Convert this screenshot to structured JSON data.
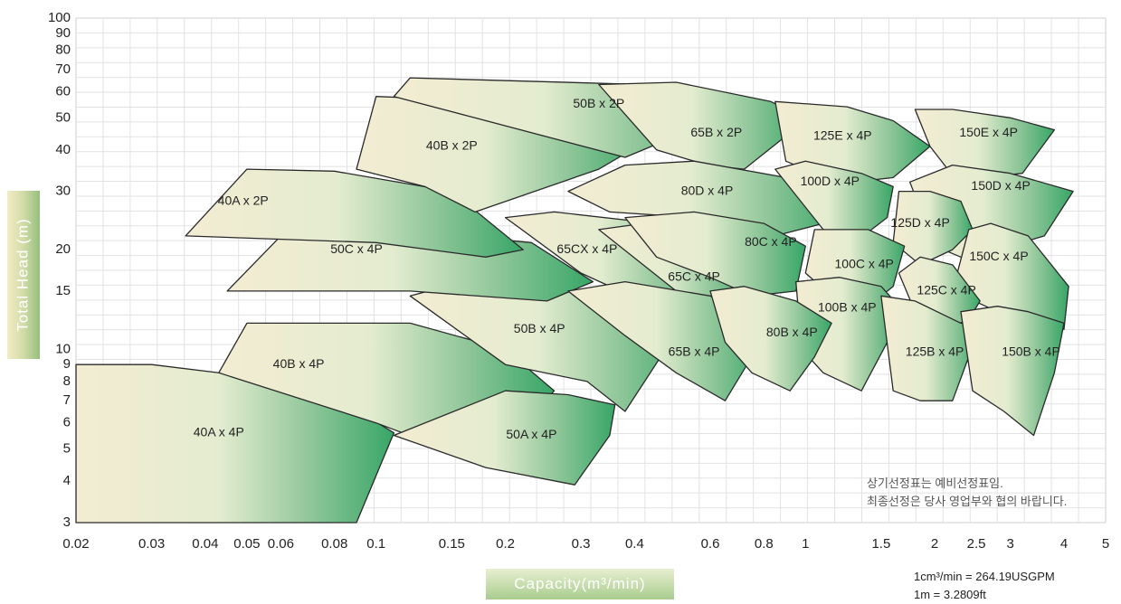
{
  "chart_data": {
    "type": "area",
    "xscale": "log",
    "yscale": "log",
    "xlim": [
      0.02,
      5
    ],
    "ylim": [
      3,
      100
    ],
    "grid": true,
    "xlabel": "Capacity(m³/min)",
    "ylabel": "Total Head (m)",
    "xticks": [
      "0.02",
      "0.03",
      "0.04",
      "0.05",
      "0.06",
      "0.08",
      "0.1",
      "0.15",
      "0.2",
      "0.3",
      "0.4",
      "0.6",
      "0.8",
      "1",
      "1.5",
      "2",
      "2.5",
      "3",
      "4",
      "5"
    ],
    "yticks": [
      "3",
      "4",
      "5",
      "6",
      "7",
      "8",
      "9",
      "10",
      "15",
      "20",
      "30",
      "40",
      "50",
      "60",
      "70",
      "80",
      "90",
      "100"
    ],
    "series": [
      {
        "name": "40A x 4P",
        "label": [
          0.043,
          5.6
        ],
        "polygon": [
          [
            0.02,
            3
          ],
          [
            0.02,
            9
          ],
          [
            0.03,
            9
          ],
          [
            0.05,
            8.3
          ],
          [
            0.08,
            7.2
          ],
          [
            0.11,
            5.6
          ],
          [
            0.09,
            3
          ]
        ]
      },
      {
        "name": "40B x 4P",
        "label": [
          0.066,
          9
        ],
        "polygon": [
          [
            0.043,
            8.5
          ],
          [
            0.05,
            12
          ],
          [
            0.12,
            12
          ],
          [
            0.2,
            10
          ],
          [
            0.26,
            7.5
          ],
          [
            0.18,
            4.5
          ],
          [
            0.1,
            6
          ]
        ]
      },
      {
        "name": "50A x 4P",
        "label": [
          0.23,
          5.5
        ],
        "polygon": [
          [
            0.11,
            5.5
          ],
          [
            0.2,
            7.5
          ],
          [
            0.28,
            7.3
          ],
          [
            0.36,
            6.8
          ],
          [
            0.35,
            5.5
          ],
          [
            0.29,
            3.9
          ],
          [
            0.18,
            4.4
          ]
        ]
      },
      {
        "name": "50B x 4P",
        "label": [
          0.24,
          11.5
        ],
        "polygon": [
          [
            0.12,
            14.5
          ],
          [
            0.16,
            16
          ],
          [
            0.32,
            15
          ],
          [
            0.55,
            13
          ],
          [
            0.46,
            9.5
          ],
          [
            0.38,
            6.5
          ],
          [
            0.31,
            8
          ],
          [
            0.2,
            9
          ]
        ]
      },
      {
        "name": "50C x 4P",
        "label": [
          0.09,
          20
        ],
        "polygon": [
          [
            0.045,
            15
          ],
          [
            0.06,
            22
          ],
          [
            0.11,
            23
          ],
          [
            0.23,
            21
          ],
          [
            0.32,
            16
          ],
          [
            0.25,
            14
          ],
          [
            0.12,
            15
          ]
        ]
      },
      {
        "name": "40A x 2P",
        "label": [
          0.049,
          28
        ],
        "polygon": [
          [
            0.036,
            22
          ],
          [
            0.05,
            35
          ],
          [
            0.08,
            34.5
          ],
          [
            0.15,
            30
          ],
          [
            0.22,
            20
          ],
          [
            0.18,
            19
          ],
          [
            0.1,
            21
          ]
        ]
      },
      {
        "name": "40B x 2P",
        "label": [
          0.15,
          41
        ],
        "polygon": [
          [
            0.09,
            35
          ],
          [
            0.1,
            58
          ],
          [
            0.2,
            56
          ],
          [
            0.33,
            50
          ],
          [
            0.42,
            42
          ],
          [
            0.33,
            35
          ],
          [
            0.17,
            26
          ],
          [
            0.13,
            31
          ]
        ]
      },
      {
        "name": "50B x 2P",
        "label": [
          0.33,
          55
        ],
        "polygon": [
          [
            0.11,
            58
          ],
          [
            0.12,
            66
          ],
          [
            0.42,
            63
          ],
          [
            0.58,
            57
          ],
          [
            0.65,
            48
          ],
          [
            0.52,
            45
          ],
          [
            0.38,
            38
          ]
        ]
      },
      {
        "name": "65B x 2P",
        "label": [
          0.62,
          45
        ],
        "polygon": [
          [
            0.33,
            63
          ],
          [
            0.5,
            64
          ],
          [
            0.83,
            56
          ],
          [
            1.0,
            50
          ],
          [
            0.88,
            43
          ],
          [
            0.72,
            35
          ],
          [
            0.59,
            36
          ],
          [
            0.45,
            40
          ]
        ]
      },
      {
        "name": "125E x 4P",
        "label": [
          1.22,
          44
        ],
        "polygon": [
          [
            0.85,
            56
          ],
          [
            1.25,
            54
          ],
          [
            1.6,
            49
          ],
          [
            1.95,
            41
          ],
          [
            1.6,
            33
          ],
          [
            1.3,
            32
          ],
          [
            1.05,
            34
          ],
          [
            0.9,
            37
          ]
        ]
      },
      {
        "name": "150E x 4P",
        "label": [
          2.67,
          45
        ],
        "polygon": [
          [
            1.8,
            53
          ],
          [
            2.2,
            53
          ],
          [
            3.0,
            50
          ],
          [
            3.8,
            46
          ],
          [
            3.2,
            34
          ],
          [
            2.6,
            33
          ],
          [
            2.2,
            33.5
          ],
          [
            1.95,
            41
          ]
        ]
      },
      {
        "name": "80D x 4P",
        "label": [
          0.59,
          30
        ],
        "polygon": [
          [
            0.28,
            30
          ],
          [
            0.38,
            36
          ],
          [
            0.55,
            37
          ],
          [
            0.9,
            33
          ],
          [
            1.2,
            28
          ],
          [
            1.1,
            24
          ],
          [
            0.85,
            22
          ],
          [
            0.55,
            25
          ],
          [
            0.35,
            26
          ]
        ]
      },
      {
        "name": "100D x 4P",
        "label": [
          1.14,
          32
        ],
        "polygon": [
          [
            0.85,
            35
          ],
          [
            1.0,
            37
          ],
          [
            1.35,
            34
          ],
          [
            1.6,
            31
          ],
          [
            1.55,
            25
          ],
          [
            1.3,
            21
          ],
          [
            1.1,
            23
          ]
        ]
      },
      {
        "name": "150D x 4P",
        "label": [
          2.85,
          31
        ],
        "polygon": [
          [
            1.75,
            32
          ],
          [
            2.2,
            36
          ],
          [
            3.0,
            34
          ],
          [
            4.2,
            30
          ],
          [
            3.6,
            22
          ],
          [
            2.8,
            20
          ],
          [
            2.3,
            19
          ],
          [
            2.0,
            20.5
          ]
        ]
      },
      {
        "name": "125D x 4P",
        "label": [
          1.85,
          24
        ],
        "polygon": [
          [
            1.65,
            30
          ],
          [
            1.95,
            30
          ],
          [
            2.3,
            28
          ],
          [
            2.45,
            23
          ],
          [
            2.2,
            20
          ],
          [
            1.85,
            18
          ],
          [
            1.6,
            21
          ]
        ]
      },
      {
        "name": "65CX x 4P",
        "label": [
          0.31,
          20
        ],
        "polygon": [
          [
            0.2,
            25
          ],
          [
            0.26,
            26
          ],
          [
            0.45,
            24
          ],
          [
            0.62,
            21
          ],
          [
            0.58,
            15
          ],
          [
            0.45,
            14
          ],
          [
            0.37,
            15
          ],
          [
            0.3,
            17
          ]
        ]
      },
      {
        "name": "65C x 4P",
        "label": [
          0.55,
          16.5
        ],
        "polygon": [
          [
            0.33,
            23
          ],
          [
            0.42,
            24
          ],
          [
            0.6,
            22
          ],
          [
            0.75,
            19
          ],
          [
            0.7,
            14
          ],
          [
            0.6,
            13.5
          ],
          [
            0.5,
            15
          ]
        ]
      },
      {
        "name": "80C x 4P",
        "label": [
          0.83,
          21
        ],
        "polygon": [
          [
            0.38,
            25
          ],
          [
            0.55,
            26
          ],
          [
            0.8,
            24
          ],
          [
            1.0,
            20.5
          ],
          [
            0.95,
            15
          ],
          [
            0.75,
            14.5
          ],
          [
            0.6,
            16.5
          ],
          [
            0.45,
            19
          ]
        ]
      },
      {
        "name": "100C x 4P",
        "label": [
          1.37,
          18
        ],
        "polygon": [
          [
            1.05,
            23
          ],
          [
            1.4,
            23
          ],
          [
            1.7,
            20.5
          ],
          [
            1.6,
            15.5
          ],
          [
            1.35,
            13
          ],
          [
            1.15,
            14.5
          ],
          [
            1.0,
            17
          ]
        ]
      },
      {
        "name": "150C x 4P",
        "label": [
          2.82,
          19
        ],
        "polygon": [
          [
            2.4,
            23
          ],
          [
            2.7,
            24
          ],
          [
            3.3,
            22
          ],
          [
            4.1,
            15.5
          ],
          [
            4.0,
            11.5
          ],
          [
            3.3,
            12
          ],
          [
            2.8,
            13
          ],
          [
            2.2,
            15
          ]
        ]
      },
      {
        "name": "125C x 4P",
        "label": [
          2.13,
          15
        ],
        "polygon": [
          [
            1.65,
            17
          ],
          [
            1.85,
            19
          ],
          [
            2.2,
            18
          ],
          [
            2.55,
            14
          ],
          [
            2.4,
            12.3
          ],
          [
            2.1,
            11.5
          ],
          [
            1.8,
            13
          ]
        ]
      },
      {
        "name": "100B x 4P",
        "label": [
          1.25,
          13.3
        ],
        "polygon": [
          [
            0.95,
            16
          ],
          [
            1.2,
            16.5
          ],
          [
            1.5,
            15.5
          ],
          [
            1.65,
            13.5
          ],
          [
            1.55,
            10.5
          ],
          [
            1.35,
            7.5
          ],
          [
            1.1,
            8.5
          ],
          [
            0.98,
            10
          ]
        ]
      },
      {
        "name": "65B x 4P",
        "label": [
          0.55,
          9.8
        ],
        "polygon": [
          [
            0.28,
            15
          ],
          [
            0.38,
            16
          ],
          [
            0.6,
            14.5
          ],
          [
            0.8,
            11.5
          ],
          [
            0.75,
            9.5
          ],
          [
            0.65,
            7
          ],
          [
            0.5,
            8.5
          ],
          [
            0.38,
            11
          ]
        ]
      },
      {
        "name": "80B x 4P",
        "label": [
          0.93,
          11.2
        ],
        "polygon": [
          [
            0.6,
            15
          ],
          [
            0.72,
            15.5
          ],
          [
            0.95,
            14
          ],
          [
            1.15,
            12
          ],
          [
            1.05,
            9.5
          ],
          [
            0.92,
            7.5
          ],
          [
            0.75,
            8.5
          ],
          [
            0.65,
            10.5
          ]
        ]
      },
      {
        "name": "125B x 4P",
        "label": [
          2.0,
          9.8
        ],
        "polygon": [
          [
            1.5,
            14.5
          ],
          [
            1.8,
            14
          ],
          [
            2.3,
            12
          ],
          [
            2.55,
            11.8
          ],
          [
            2.4,
            9.5
          ],
          [
            2.2,
            7
          ],
          [
            1.85,
            7
          ],
          [
            1.6,
            7.5
          ]
        ]
      },
      {
        "name": "150B x 4P",
        "label": [
          3.35,
          9.8
        ],
        "polygon": [
          [
            2.3,
            13
          ],
          [
            2.8,
            13.5
          ],
          [
            3.3,
            13
          ],
          [
            4.0,
            12
          ],
          [
            3.8,
            8.5
          ],
          [
            3.4,
            5.5
          ],
          [
            2.9,
            6.5
          ],
          [
            2.45,
            7.5
          ]
        ]
      }
    ]
  },
  "note": {
    "line1": "상기선정표는 예비선정표임.",
    "line2": "최종선정은 당사 영업부와 협의 바랍니다."
  },
  "conversions": {
    "line1": "1cm³/min = 264.19USGPM",
    "line2": "1m = 3.2809ft"
  },
  "colors": {
    "grid": "#e2e2e2",
    "fill_light": "#f3ecd2",
    "fill_dark": "#37a667",
    "outline": "#2a2a2a"
  }
}
